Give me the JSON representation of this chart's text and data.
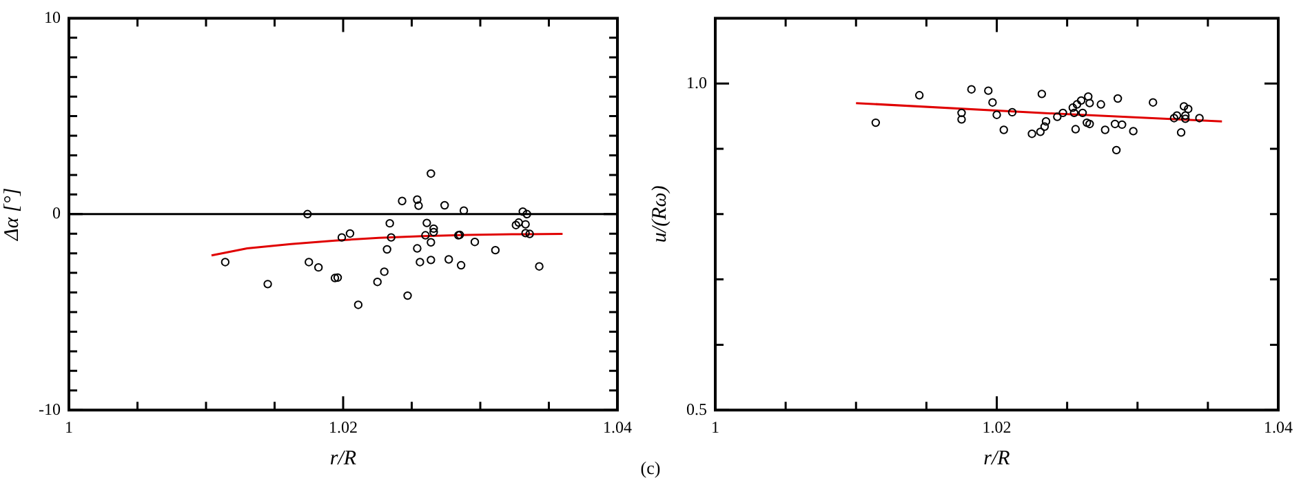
{
  "chart_data": [
    {
      "type": "scatter",
      "xlabel": "r/R",
      "ylabel": "Δα [°]",
      "xlim": [
        1,
        1.04
      ],
      "xticks": [
        1,
        {
          "value": 1.005,
          "label": null
        },
        {
          "value": 1.01,
          "label": null
        },
        {
          "value": 1.015,
          "label": null
        },
        1.02,
        {
          "value": 1.025,
          "label": null
        },
        {
          "value": 1.03,
          "label": null
        },
        {
          "value": 1.035,
          "label": null
        },
        1.04
      ],
      "ylim": [
        -10,
        10
      ],
      "yticks": [
        -10,
        {
          "value": -9,
          "label": null
        },
        {
          "value": -8,
          "label": null
        },
        {
          "value": -7,
          "label": null
        },
        {
          "value": -6,
          "label": null
        },
        {
          "value": -5,
          "label": null
        },
        {
          "value": -4,
          "label": null
        },
        {
          "value": -3,
          "label": null
        },
        {
          "value": -2,
          "label": null
        },
        {
          "value": -1,
          "label": null
        },
        0,
        {
          "value": 1,
          "label": null
        },
        {
          "value": 2,
          "label": null
        },
        {
          "value": 3,
          "label": null
        },
        {
          "value": 4,
          "label": null
        },
        {
          "value": 5,
          "label": null
        },
        {
          "value": 6,
          "label": null
        },
        {
          "value": 7,
          "label": null
        },
        {
          "value": 8,
          "label": null
        },
        {
          "value": 9,
          "label": null
        },
        10
      ],
      "legend": false,
      "ref_lines": [
        {
          "axis": "y",
          "value": 0,
          "color": "#000000",
          "line_style": "solid"
        }
      ],
      "annotations": [
        "(c)"
      ],
      "series": [
        {
          "type": "scatter",
          "marker": "circle",
          "color": "#000000",
          "x": [
            1.0114,
            1.0145,
            1.0174,
            1.0175,
            1.0182,
            1.0194,
            1.0196,
            1.0199,
            1.0205,
            1.0211,
            1.0225,
            1.023,
            1.0232,
            1.0234,
            1.0235,
            1.0243,
            1.0247,
            1.0254,
            1.0254,
            1.0255,
            1.0256,
            1.026,
            1.0261,
            1.0264,
            1.0264,
            1.0264,
            1.0266,
            1.0266,
            1.0274,
            1.0277,
            1.0284,
            1.0285,
            1.0286,
            1.0288,
            1.0296,
            1.0311,
            1.0326,
            1.0328,
            1.0331,
            1.0333,
            1.0334,
            1.0333,
            1.0336,
            1.0343
          ],
          "values": [
            -2.45,
            -3.57,
            0,
            -2.45,
            -2.72,
            -3.26,
            -3.24,
            -1.19,
            -0.99,
            -4.63,
            -3.46,
            -2.94,
            -1.8,
            -0.47,
            -1.19,
            0.67,
            -4.16,
            0.74,
            -1.75,
            0.43,
            -2.45,
            -1.08,
            -0.45,
            -2.34,
            2.07,
            -1.44,
            -0.74,
            -0.92,
            0.45,
            -2.31,
            -1.08,
            -1.06,
            -2.61,
            0.18,
            -1.42,
            -1.84,
            -0.56,
            -0.43,
            0.13,
            -0.52,
            0,
            -0.97,
            -1.01,
            -2.67
          ]
        },
        {
          "type": "line",
          "marker": "none",
          "color": "#e00000",
          "x": [
            1.0104,
            1.013,
            1.0162,
            1.0194,
            1.0226,
            1.0258,
            1.0291,
            1.0323,
            1.036
          ],
          "values": [
            -2.11,
            -1.75,
            -1.53,
            -1.35,
            -1.21,
            -1.12,
            -1.06,
            -1.03,
            -1.01
          ]
        }
      ]
    },
    {
      "type": "scatter",
      "xlabel": "r/R",
      "ylabel": "u/(Rω)",
      "xlim": [
        1,
        1.04
      ],
      "xticks": [
        1,
        {
          "value": 1.005,
          "label": null
        },
        {
          "value": 1.01,
          "label": null
        },
        {
          "value": 1.015,
          "label": null
        },
        1.02,
        {
          "value": 1.025,
          "label": null
        },
        {
          "value": 1.03,
          "label": null
        },
        {
          "value": 1.035,
          "label": null
        },
        1.04
      ],
      "ylim": [
        0.5,
        1.1
      ],
      "yticks": [
        0.5,
        {
          "value": 0.6,
          "label": null
        },
        {
          "value": 0.7,
          "label": null
        },
        {
          "value": 0.8,
          "label": null
        },
        {
          "value": 0.9,
          "label": null
        },
        {
          "value": 1,
          "label": "1.0"
        }
      ],
      "legend": false,
      "series": [
        {
          "type": "scatter",
          "marker": "circle",
          "color": "#000000",
          "x": [
            1.0114,
            1.0145,
            1.0175,
            1.0175,
            1.0182,
            1.0194,
            1.0197,
            1.02,
            1.0205,
            1.0211,
            1.0225,
            1.0231,
            1.0232,
            1.0234,
            1.0235,
            1.0243,
            1.0247,
            1.0254,
            1.0255,
            1.0256,
            1.0257,
            1.026,
            1.0261,
            1.0264,
            1.0265,
            1.0266,
            1.0266,
            1.0274,
            1.0277,
            1.0284,
            1.0285,
            1.0286,
            1.0289,
            1.0297,
            1.0311,
            1.0326,
            1.0328,
            1.0331,
            1.0333,
            1.0334,
            1.0334,
            1.0336,
            1.0344
          ],
          "values": [
            0.94,
            0.982,
            0.945,
            0.955,
            0.991,
            0.989,
            0.971,
            0.952,
            0.929,
            0.956,
            0.923,
            0.926,
            0.984,
            0.934,
            0.942,
            0.949,
            0.955,
            0.963,
            0.955,
            0.93,
            0.968,
            0.974,
            0.955,
            0.94,
            0.98,
            0.938,
            0.97,
            0.968,
            0.929,
            0.938,
            0.898,
            0.977,
            0.937,
            0.927,
            0.971,
            0.947,
            0.951,
            0.925,
            0.965,
            0.951,
            0.946,
            0.961,
            0.947
          ]
        },
        {
          "type": "line",
          "marker": "none",
          "color": "#e00000",
          "x": [
            1.01,
            1.023,
            1.036
          ],
          "values": [
            0.97,
            0.955,
            0.942
          ]
        }
      ]
    }
  ]
}
